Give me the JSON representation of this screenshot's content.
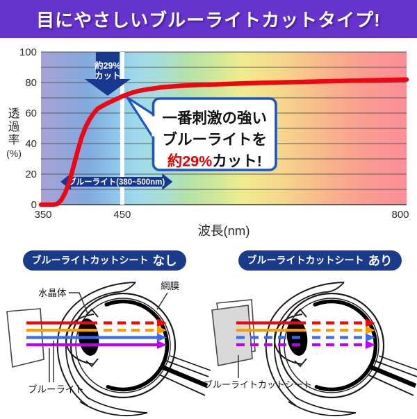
{
  "banner": {
    "title": "目にやさしいブルーライトカットタイプ!",
    "bg_color": "#6633cc",
    "text_color": "#ffffff"
  },
  "chart_data": {
    "type": "line",
    "title": "",
    "xlabel": "波長(nm)",
    "ylabel": "透過率(%)",
    "ylabel_stacked": [
      "透",
      "過",
      "率"
    ],
    "ylabel_unit": "(%)",
    "xlim": [
      350,
      800
    ],
    "ylim": [
      0,
      100
    ],
    "x_ticks": [
      350,
      450,
      800
    ],
    "y_ticks": [
      0,
      20,
      40,
      60,
      80,
      100
    ],
    "grid_step": 10,
    "grid_color": "#4a4a4a",
    "axis_text_color": "#2b2b2b",
    "spectrum_gradient": [
      "#aaa2d6",
      "#96a5da",
      "#81aade",
      "#8fc4e8",
      "#9fdaec",
      "#a9ded7",
      "#b5e1a9",
      "#cde79b",
      "#f0ec8e",
      "#f5d98c",
      "#f8bd8b",
      "#fa9f90",
      "#fb8d99"
    ],
    "series": [
      {
        "name": "透過率(%)",
        "color": "#ee0613",
        "x": [
          350,
          360,
          365,
          370,
          375,
          380,
          385,
          390,
          395,
          400,
          405,
          410,
          415,
          420,
          430,
          440,
          450,
          460,
          470,
          480,
          500,
          520,
          550,
          600,
          650,
          700,
          750,
          800
        ],
        "y": [
          0,
          0,
          0,
          0.5,
          3,
          8,
          15,
          25,
          35,
          44,
          51,
          56,
          60,
          63,
          66,
          68.5,
          71,
          73,
          74.5,
          75.5,
          77,
          77.8,
          78.5,
          79.5,
          80.2,
          80.8,
          81.4,
          82
        ]
      }
    ],
    "annotations": {
      "marker_line": {
        "at_nm": 450,
        "color": "#ffffff"
      },
      "cut_arrow": {
        "at_nm": 450,
        "line1": "約29%",
        "line2": "カット",
        "color": "#18388f",
        "text_color": "#ffffff"
      },
      "band": {
        "label": "ブルーライト(380~500nm)",
        "from_nm": 380,
        "to_nm": 500,
        "color": "#18388f",
        "text_color": "#ffffff"
      },
      "callout": {
        "lines": [
          "一番刺激の強い",
          "ブルーライトを",
          "約29%カット!"
        ],
        "highlight": "約29%",
        "highlight_color": "#e60000",
        "text_color": "#111111",
        "border_color": "#1d56c2"
      }
    }
  },
  "diagrams": {
    "without": {
      "badge_prefix": "ブルーライトカットシート",
      "badge_suffix": "なし",
      "labels": {
        "lens": "水晶体",
        "retina": "網膜",
        "rays": "ブルーライト"
      },
      "has_sheet": false,
      "rays": [
        {
          "name": "red-ray",
          "color": "#f50505",
          "before_lens": "solid",
          "after_lens": "dashed"
        },
        {
          "name": "orange-ray",
          "color": "#ff9900",
          "before_lens": "solid",
          "after_lens": "dashed"
        },
        {
          "name": "blue-ray",
          "color": "#3a6af0",
          "before_lens": "solid",
          "after_lens": "solid"
        },
        {
          "name": "purple-ray",
          "color": "#bb00ee",
          "before_lens": "solid",
          "after_lens": "solid"
        }
      ]
    },
    "with": {
      "badge_prefix": "ブルーライトカットシート",
      "badge_suffix": "あり",
      "labels": {
        "sheet": "ブルーライトカットシート"
      },
      "has_sheet": true,
      "rays": [
        {
          "name": "red-ray",
          "color": "#f50505",
          "before_lens": "solid",
          "after_lens": "dashed"
        },
        {
          "name": "orange-ray",
          "color": "#ff9900",
          "before_lens": "solid",
          "after_lens": "dashed"
        },
        {
          "name": "blue-ray",
          "color": "#3a6af0",
          "before_lens": "dashed",
          "after_lens": "dashed"
        },
        {
          "name": "purple-ray",
          "color": "#bb00ee",
          "before_lens": "dashed",
          "after_lens": "dashed"
        }
      ]
    }
  },
  "colors": {
    "badge_bg": "#1a3a8c",
    "badge_fg": "#ffffff",
    "eye_line": "#1a1a1a",
    "label_text": "#111111",
    "sheet_fill": "#d9d9d9"
  }
}
